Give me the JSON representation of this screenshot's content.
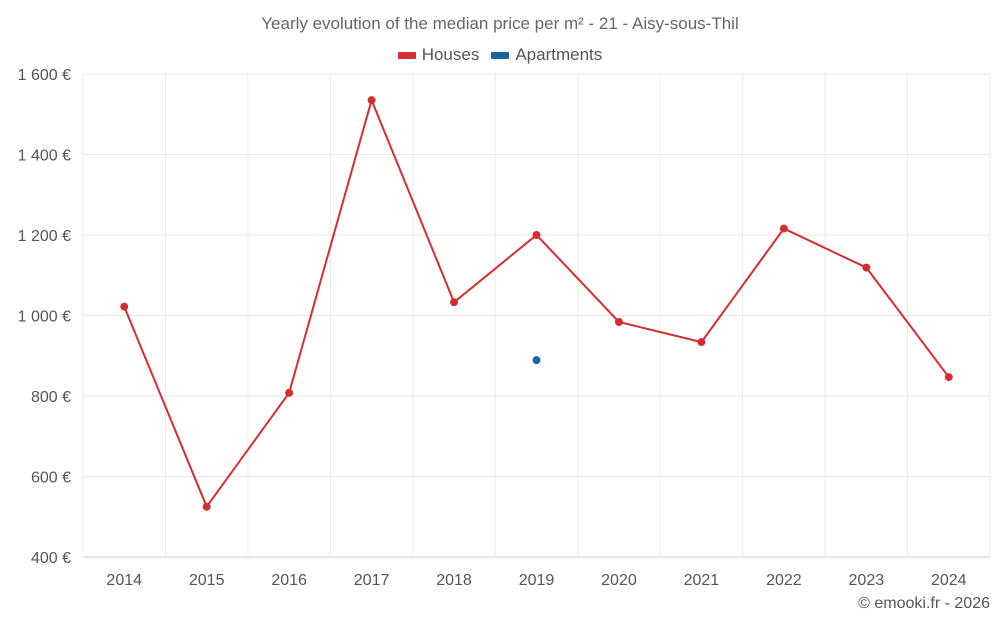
{
  "chart_data": {
    "type": "line",
    "title": "Yearly evolution of the median price per m² - 21 - Aisy-sous-Thil",
    "categories": [
      "2014",
      "2015",
      "2016",
      "2017",
      "2018",
      "2019",
      "2020",
      "2021",
      "2022",
      "2023",
      "2024"
    ],
    "y_ticks": [
      "400 €",
      "600 €",
      "800 €",
      "1 000 €",
      "1 200 €",
      "1 400 €",
      "1 600 €"
    ],
    "y_tick_values": [
      400,
      600,
      800,
      1000,
      1200,
      1400,
      1600
    ],
    "ylim": [
      400,
      1600
    ],
    "grid": true,
    "legend_position": "top-center",
    "series": [
      {
        "name": "Houses",
        "color": "#d32f2f",
        "values": [
          1022,
          525,
          808,
          1535,
          1033,
          1200,
          984,
          934,
          1216,
          1119,
          847
        ]
      },
      {
        "name": "Apartments",
        "color": "#1565a0",
        "values": [
          null,
          null,
          null,
          null,
          null,
          889,
          null,
          null,
          null,
          null,
          null
        ]
      }
    ]
  },
  "credit": "© emooki.fr - 2026"
}
